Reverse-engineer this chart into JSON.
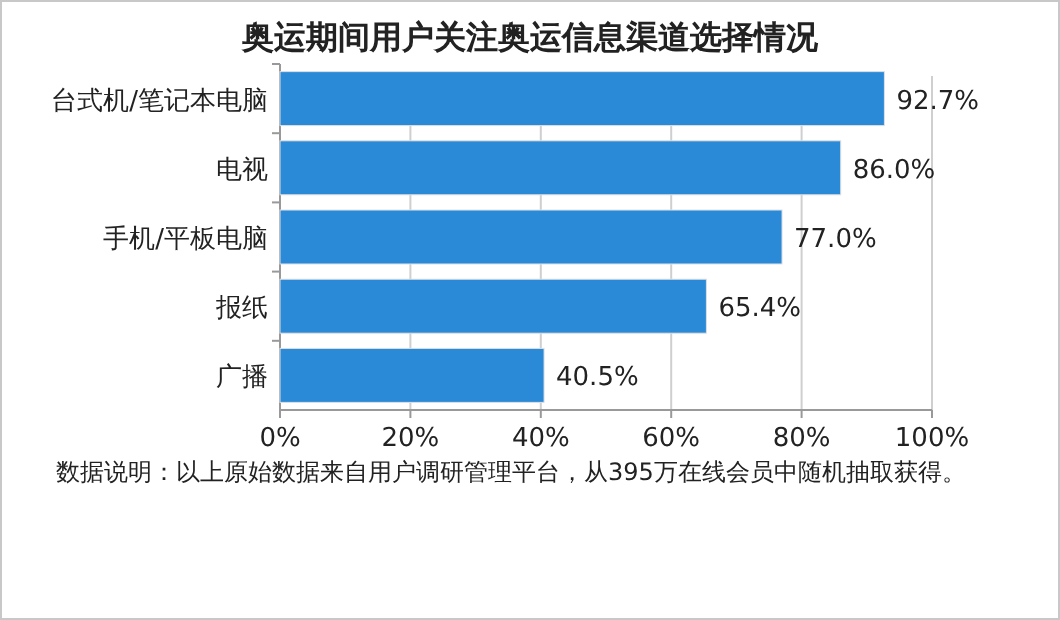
{
  "chart_data": {
    "type": "bar",
    "orientation": "horizontal",
    "title": "奥运期间用户关注奥运信息渠道选择情况",
    "categories": [
      "台式机/笔记本电脑",
      "电视",
      "手机/平板电脑",
      "报纸",
      "广播"
    ],
    "values": [
      92.7,
      86.0,
      77.0,
      65.4,
      40.5
    ],
    "value_labels": [
      "92.7%",
      "86.0%",
      "77.0%",
      "65.4%",
      "40.5%"
    ],
    "color": "#2b8ad8",
    "xlim": [
      0,
      100
    ],
    "xticks": [
      {
        "value": 0,
        "label": "0%"
      },
      {
        "value": 20,
        "label": "20%"
      },
      {
        "value": 40,
        "label": "40%"
      },
      {
        "value": 60,
        "label": "60%"
      },
      {
        "value": 80,
        "label": "80%"
      },
      {
        "value": 100,
        "label": "100%"
      }
    ],
    "grid": "x",
    "annotations": [
      "数据说明：以上原始数据来自用户调研管理平台，从395万在线会员中随机抽取获得。"
    ]
  }
}
